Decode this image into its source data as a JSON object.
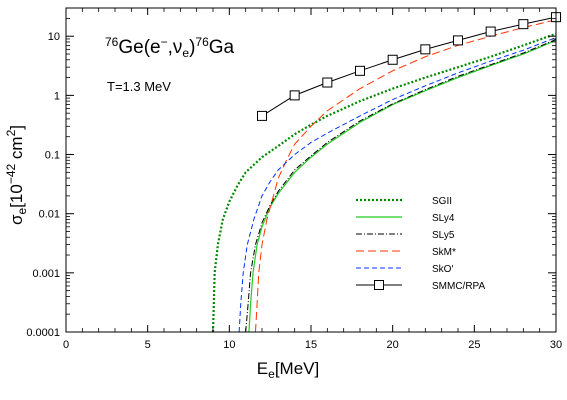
{
  "chart_data": {
    "type": "line",
    "xlabel": {
      "main": "E",
      "sub": "e",
      "unit": "[MeV]"
    },
    "ylabel": {
      "main": "σ",
      "sub": "e",
      "unit_pre": "[10",
      "unit_exp": "−42",
      "unit_mid": " cm",
      "unit_exp2": "2",
      "unit_post": "]"
    },
    "xlim": [
      0,
      30
    ],
    "ylim": [
      0.0001,
      30
    ],
    "yscale": "log",
    "x_ticks": [
      0,
      5,
      10,
      15,
      20,
      25,
      30
    ],
    "x_tick_labels": [
      "0",
      "5",
      "10",
      "15",
      "20",
      "25",
      "30"
    ],
    "y_ticks": [
      0.0001,
      0.001,
      0.01,
      0.1,
      1,
      10
    ],
    "y_tick_labels": [
      "0.0001",
      "0.001",
      "0.01",
      "0.1",
      "1",
      "10"
    ],
    "annotations": {
      "reaction": {
        "pre": "76",
        "main": "Ge(e",
        "exp": "−",
        "mid": ",ν",
        "sub": "e",
        "close": ")",
        "pre2": "76",
        "end": "Ga"
      },
      "temperature": "T=1.3 MeV"
    },
    "legend_position": "lower-right",
    "series": [
      {
        "name": "SGII",
        "color": "#008800",
        "dash": "2,2",
        "width": 2.2,
        "marker": null,
        "points": [
          [
            9.0,
            0.0001
          ],
          [
            9.05,
            0.0003
          ],
          [
            9.1,
            0.001
          ],
          [
            9.3,
            0.003
          ],
          [
            9.6,
            0.008
          ],
          [
            10,
            0.016
          ],
          [
            10.5,
            0.03
          ],
          [
            11,
            0.05
          ],
          [
            12,
            0.09
          ],
          [
            13,
            0.14
          ],
          [
            14,
            0.22
          ],
          [
            15,
            0.32
          ],
          [
            16,
            0.45
          ],
          [
            18,
            0.8
          ],
          [
            20,
            1.3
          ],
          [
            22,
            2.0
          ],
          [
            24,
            3.0
          ],
          [
            26,
            4.5
          ],
          [
            28,
            7.0
          ],
          [
            30,
            11.0
          ]
        ]
      },
      {
        "name": "SLy4",
        "color": "#22cc22",
        "dash": "",
        "width": 1.2,
        "marker": null,
        "points": [
          [
            11.2,
            0.0001
          ],
          [
            11.3,
            0.0003
          ],
          [
            11.45,
            0.001
          ],
          [
            11.7,
            0.003
          ],
          [
            12,
            0.006
          ],
          [
            12.5,
            0.013
          ],
          [
            13,
            0.022
          ],
          [
            14,
            0.05
          ],
          [
            15,
            0.09
          ],
          [
            16,
            0.15
          ],
          [
            18,
            0.35
          ],
          [
            20,
            0.7
          ],
          [
            22,
            1.2
          ],
          [
            24,
            2.0
          ],
          [
            26,
            3.2
          ],
          [
            28,
            5.0
          ],
          [
            30,
            8.5
          ]
        ]
      },
      {
        "name": "SLy5",
        "color": "#000000",
        "dash": "6,2,1,2",
        "width": 1.0,
        "marker": null,
        "points": [
          [
            11.0,
            0.0001
          ],
          [
            11.15,
            0.0003
          ],
          [
            11.3,
            0.001
          ],
          [
            11.6,
            0.003
          ],
          [
            12,
            0.007
          ],
          [
            12.5,
            0.014
          ],
          [
            13,
            0.024
          ],
          [
            14,
            0.055
          ],
          [
            15,
            0.095
          ],
          [
            16,
            0.16
          ],
          [
            18,
            0.37
          ],
          [
            20,
            0.72
          ],
          [
            22,
            1.25
          ],
          [
            24,
            2.1
          ],
          [
            26,
            3.3
          ],
          [
            28,
            5.2
          ],
          [
            30,
            8.8
          ]
        ]
      },
      {
        "name": "SkM*",
        "color": "#ff3300",
        "dash": "8,4",
        "width": 1.0,
        "marker": null,
        "points": [
          [
            11.6,
            0.0001
          ],
          [
            11.7,
            0.0003
          ],
          [
            11.8,
            0.001
          ],
          [
            12,
            0.003
          ],
          [
            12.3,
            0.008
          ],
          [
            12.7,
            0.02
          ],
          [
            13,
            0.04
          ],
          [
            13.5,
            0.08
          ],
          [
            14,
            0.15
          ],
          [
            15,
            0.3
          ],
          [
            16,
            0.55
          ],
          [
            18,
            1.3
          ],
          [
            20,
            2.6
          ],
          [
            22,
            4.5
          ],
          [
            24,
            7.0
          ],
          [
            26,
            10.0
          ],
          [
            28,
            14.0
          ],
          [
            30,
            19.0
          ]
        ]
      },
      {
        "name": "SkO'",
        "color": "#0033ff",
        "dash": "5,3",
        "width": 1.0,
        "marker": null,
        "points": [
          [
            10.6,
            0.0001
          ],
          [
            10.7,
            0.0003
          ],
          [
            10.85,
            0.001
          ],
          [
            11.1,
            0.003
          ],
          [
            11.5,
            0.008
          ],
          [
            12,
            0.02
          ],
          [
            12.5,
            0.035
          ],
          [
            13,
            0.055
          ],
          [
            14,
            0.1
          ],
          [
            15,
            0.16
          ],
          [
            16,
            0.23
          ],
          [
            18,
            0.45
          ],
          [
            20,
            0.85
          ],
          [
            22,
            1.45
          ],
          [
            24,
            2.4
          ],
          [
            26,
            3.8
          ],
          [
            28,
            5.8
          ],
          [
            30,
            9.5
          ]
        ]
      },
      {
        "name": "SMMC/RPA",
        "color": "#000000",
        "dash": "",
        "width": 1.0,
        "marker": "open-square",
        "points": [
          [
            12,
            0.45
          ],
          [
            14,
            1.0
          ],
          [
            16,
            1.65
          ],
          [
            18,
            2.6
          ],
          [
            20,
            4.0
          ],
          [
            22,
            6.0
          ],
          [
            24,
            8.5
          ],
          [
            26,
            12.0
          ],
          [
            28,
            16.0
          ],
          [
            30,
            21.0
          ]
        ]
      }
    ]
  }
}
